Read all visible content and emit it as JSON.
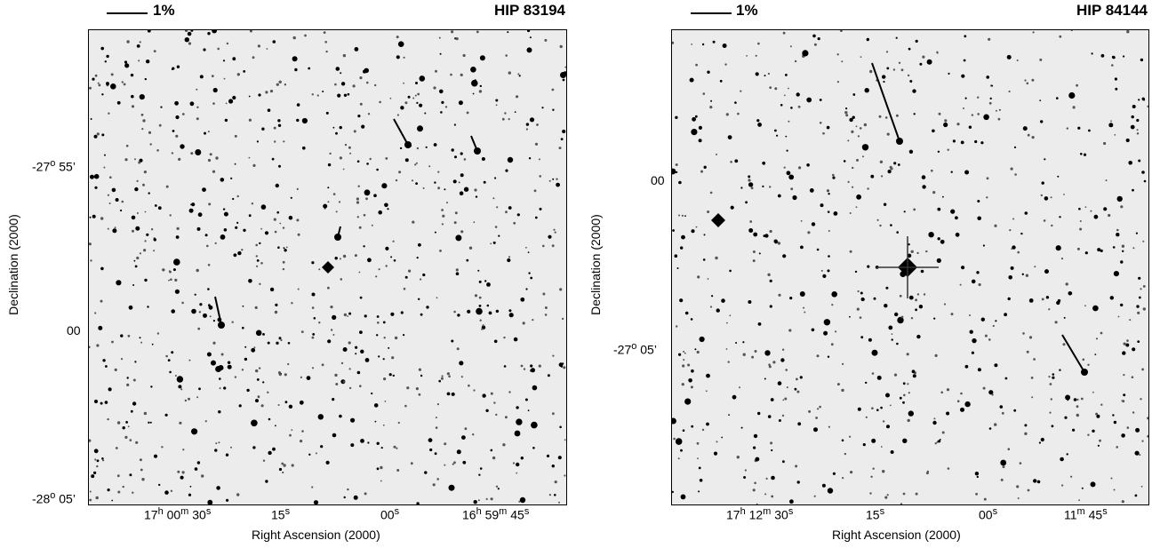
{
  "panels": [
    {
      "scale_label": "1%",
      "object_name": "HIP 83194",
      "y_axis_title": "Declination (2000)",
      "x_axis_title": "Right Ascension (2000)",
      "y_ticks": [
        "-27° 55’",
        "00",
        "-28° 05’"
      ],
      "x_ticks": [
        "17h 00m 30s",
        "15s",
        "00s",
        "16h 59m 45s"
      ]
    },
    {
      "scale_label": "1%",
      "object_name": "HIP 84144",
      "y_axis_title": "Declination (2000)",
      "x_axis_title": "Right Ascension (2000)",
      "y_ticks": [
        "00",
        "-27° 05’"
      ],
      "x_ticks": [
        "17h 12m 30s",
        "15s",
        "00s",
        "11m 45s"
      ]
    }
  ]
}
